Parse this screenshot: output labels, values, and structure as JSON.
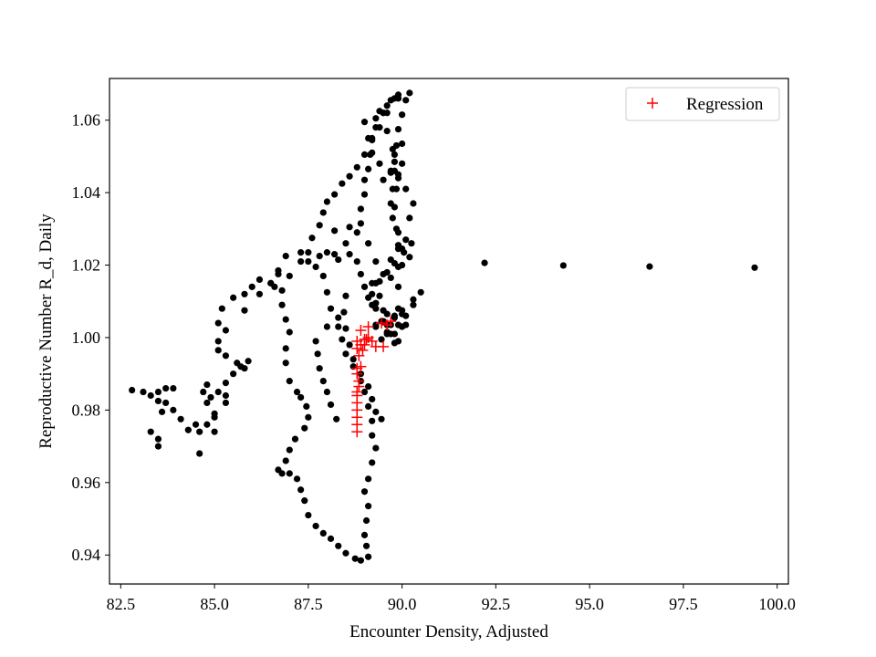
{
  "chart_data": {
    "type": "scatter",
    "title": "",
    "xlabel": "Encounter Density, Adjusted",
    "ylabel": "Reproductive Number R_d, Daily",
    "xlim": [
      82.2,
      100.3
    ],
    "ylim": [
      0.932,
      1.0715
    ],
    "xticks": [
      82.5,
      85.0,
      87.5,
      90.0,
      92.5,
      95.0,
      97.5,
      100.0
    ],
    "xtick_labels": [
      "82.5",
      "85.0",
      "87.5",
      "90.0",
      "92.5",
      "95.0",
      "97.5",
      "100.0"
    ],
    "yticks": [
      0.94,
      0.96,
      0.98,
      1.0,
      1.02,
      1.04,
      1.06
    ],
    "ytick_labels": [
      "0.94",
      "0.96",
      "0.98",
      "1.00",
      "1.02",
      "1.04",
      "1.06"
    ],
    "grid": false,
    "legend_position": "top-right",
    "observations": {
      "color": "#000000",
      "marker": "dot",
      "path": [
        [
          99.4,
          1.0193
        ],
        [
          96.6,
          1.0196
        ],
        [
          94.3,
          1.0199
        ],
        [
          92.2,
          1.0206
        ],
        [
          90.2,
          1.0222
        ],
        [
          90.05,
          1.0235
        ],
        [
          89.9,
          1.0255
        ],
        [
          89.85,
          1.03
        ],
        [
          89.8,
          1.036
        ],
        [
          89.75,
          1.041
        ],
        [
          89.8,
          1.046
        ],
        [
          89.75,
          1.052
        ],
        [
          89.6,
          1.057
        ],
        [
          89.6,
          1.062
        ],
        [
          89.8,
          1.066
        ],
        [
          90.2,
          1.0675
        ],
        [
          89.9,
          1.066
        ],
        [
          89.5,
          1.062
        ],
        [
          89.3,
          1.058
        ],
        [
          89.2,
          1.055
        ],
        [
          89.2,
          1.051
        ],
        [
          89.4,
          1.048
        ],
        [
          89.7,
          1.046
        ],
        [
          89.9,
          1.044
        ],
        [
          90.1,
          1.041
        ],
        [
          90.3,
          1.037
        ],
        [
          90.2,
          1.033
        ],
        [
          90.25,
          1.026
        ],
        [
          90.0,
          1.02
        ],
        [
          89.9,
          1.014
        ],
        [
          89.9,
          1.008
        ],
        [
          90.1,
          1.0035
        ],
        [
          89.9,
          0.999
        ],
        [
          89.6,
          1.001
        ],
        [
          89.3,
          1.003
        ],
        [
          89.2,
          1.009
        ],
        [
          89.2,
          1.015
        ],
        [
          89.3,
          1.021
        ],
        [
          89.1,
          1.026
        ],
        [
          88.8,
          1.029
        ],
        [
          88.5,
          1.026
        ],
        [
          88.2,
          1.023
        ],
        [
          87.8,
          1.0225
        ],
        [
          87.5,
          1.0235
        ],
        [
          87.3,
          1.021
        ],
        [
          87.0,
          1.017
        ],
        [
          86.8,
          1.013
        ],
        [
          86.5,
          1.015
        ],
        [
          86.2,
          1.016
        ],
        [
          86.0,
          1.014
        ],
        [
          85.8,
          1.012
        ],
        [
          85.5,
          1.011
        ],
        [
          85.2,
          1.008
        ],
        [
          85.1,
          1.004
        ],
        [
          85.1,
          0.999
        ],
        [
          85.3,
          0.995
        ],
        [
          85.6,
          0.993
        ],
        [
          85.8,
          0.9915
        ],
        [
          85.9,
          0.9935
        ],
        [
          85.7,
          0.992
        ],
        [
          85.5,
          0.99
        ],
        [
          85.3,
          0.9875
        ],
        [
          85.1,
          0.985
        ],
        [
          84.9,
          0.9835
        ],
        [
          84.8,
          0.987
        ],
        [
          84.7,
          0.985
        ],
        [
          84.8,
          0.982
        ],
        [
          85.0,
          0.979
        ],
        [
          84.8,
          0.976
        ],
        [
          84.6,
          0.974
        ],
        [
          84.5,
          0.976
        ],
        [
          84.3,
          0.9745
        ],
        [
          84.1,
          0.9775
        ],
        [
          83.9,
          0.98
        ],
        [
          83.7,
          0.982
        ],
        [
          83.5,
          0.985
        ],
        [
          83.5,
          0.9825
        ],
        [
          83.7,
          0.986
        ],
        [
          83.9,
          0.986
        ],
        [
          83.6,
          0.9795
        ],
        [
          83.3,
          0.984
        ],
        [
          83.1,
          0.985
        ],
        [
          82.8,
          0.9855
        ],
        [
          83.5,
          0.97
        ],
        [
          83.5,
          0.972
        ],
        [
          83.3,
          0.974
        ],
        [
          84.6,
          0.968
        ],
        [
          85.0,
          0.974
        ],
        [
          85.0,
          0.978
        ],
        [
          85.3,
          0.982
        ],
        [
          85.3,
          0.984
        ],
        [
          85.1,
          0.9965
        ],
        [
          85.3,
          1.002
        ],
        [
          85.8,
          1.0075
        ],
        [
          86.2,
          1.012
        ],
        [
          86.5,
          1.015
        ],
        [
          86.7,
          1.0185
        ],
        [
          86.9,
          1.0225
        ],
        [
          86.7,
          1.0175
        ],
        [
          86.6,
          1.014
        ],
        [
          86.8,
          1.009
        ],
        [
          86.9,
          1.005
        ],
        [
          87.0,
          1.0015
        ],
        [
          86.9,
          0.997
        ],
        [
          86.9,
          0.993
        ],
        [
          87.0,
          0.988
        ],
        [
          87.2,
          0.985
        ],
        [
          87.3,
          0.9835
        ],
        [
          87.45,
          0.981
        ],
        [
          87.5,
          0.978
        ],
        [
          87.4,
          0.975
        ],
        [
          87.15,
          0.972
        ],
        [
          87.0,
          0.969
        ],
        [
          86.9,
          0.966
        ],
        [
          86.7,
          0.9635
        ],
        [
          86.8,
          0.9625
        ],
        [
          87.0,
          0.9625
        ],
        [
          87.2,
          0.961
        ],
        [
          87.3,
          0.958
        ],
        [
          87.4,
          0.955
        ],
        [
          87.5,
          0.951
        ],
        [
          87.7,
          0.948
        ],
        [
          87.9,
          0.946
        ],
        [
          88.1,
          0.9445
        ],
        [
          88.3,
          0.9425
        ],
        [
          88.5,
          0.9405
        ],
        [
          88.75,
          0.939
        ],
        [
          88.9,
          0.9385
        ],
        [
          89.1,
          0.9395
        ],
        [
          89.05,
          0.9425
        ],
        [
          89.0,
          0.9455
        ],
        [
          89.05,
          0.9495
        ],
        [
          89.1,
          0.9535
        ],
        [
          89.0,
          0.9575
        ],
        [
          89.1,
          0.961
        ],
        [
          89.2,
          0.9655
        ],
        [
          89.3,
          0.9695
        ],
        [
          89.2,
          0.973
        ],
        [
          89.2,
          0.977
        ],
        [
          89.1,
          0.981
        ],
        [
          89.0,
          0.985
        ],
        [
          88.9,
          0.988
        ],
        [
          88.7,
          0.992
        ],
        [
          88.5,
          0.9955
        ],
        [
          88.4,
          0.9995
        ],
        [
          88.3,
          1.003
        ],
        [
          88.1,
          1.008
        ],
        [
          88.0,
          1.0125
        ],
        [
          87.9,
          1.017
        ],
        [
          87.7,
          1.0195
        ],
        [
          87.5,
          1.021
        ],
        [
          87.3,
          1.0235
        ],
        [
          87.6,
          1.0275
        ],
        [
          87.8,
          1.031
        ],
        [
          87.9,
          1.0345
        ],
        [
          88.0,
          1.0375
        ],
        [
          88.2,
          1.0395
        ],
        [
          88.4,
          1.0425
        ],
        [
          88.6,
          1.0445
        ],
        [
          88.8,
          1.047
        ],
        [
          89.0,
          1.0505
        ],
        [
          89.2,
          1.0545
        ],
        [
          89.4,
          1.058
        ],
        [
          89.5,
          1.062
        ],
        [
          89.7,
          1.0655
        ],
        [
          89.9,
          1.067
        ],
        [
          90.1,
          1.0655
        ],
        [
          90.0,
          1.0615
        ],
        [
          89.9,
          1.0575
        ],
        [
          89.85,
          1.053
        ],
        [
          89.8,
          1.0485
        ],
        [
          89.9,
          1.045
        ],
        [
          89.85,
          1.041
        ],
        [
          89.7,
          1.037
        ],
        [
          89.75,
          1.033
        ],
        [
          89.9,
          1.029
        ],
        [
          90.0,
          1.0245
        ],
        [
          89.8,
          1.0205
        ],
        [
          89.6,
          1.018
        ],
        [
          89.4,
          1.0155
        ],
        [
          89.2,
          1.012
        ],
        [
          89.3,
          1.008
        ],
        [
          89.45,
          1.0045
        ],
        [
          89.6,
          1.0035
        ],
        [
          89.8,
          1.0055
        ],
        [
          90.0,
          1.0075
        ],
        [
          90.3,
          1.0105
        ],
        [
          90.5,
          1.0125
        ],
        [
          90.3,
          1.009
        ],
        [
          90.1,
          1.006
        ],
        [
          90.0,
          1.003
        ],
        [
          89.8,
          1.001
        ],
        [
          89.7,
          1.0035
        ],
        [
          89.6,
          1.0065
        ],
        [
          89.8,
          1.006
        ],
        [
          90.0,
          1.0065
        ],
        [
          89.5,
          1.0075
        ],
        [
          89.3,
          1.0095
        ],
        [
          89.1,
          1.011
        ],
        [
          89.0,
          1.014
        ],
        [
          88.9,
          1.0175
        ],
        [
          88.8,
          1.021
        ],
        [
          88.6,
          1.023
        ],
        [
          88.3,
          1.0215
        ],
        [
          88.0,
          1.0235
        ],
        [
          88.2,
          1.0295
        ],
        [
          88.6,
          1.0305
        ],
        [
          88.9,
          1.0315
        ],
        [
          88.9,
          1.0355
        ],
        [
          89.0,
          1.0395
        ],
        [
          89.0,
          1.0435
        ],
        [
          89.1,
          1.0465
        ],
        [
          89.15,
          1.0505
        ],
        [
          89.1,
          1.055
        ],
        [
          89.0,
          1.0595
        ],
        [
          89.3,
          1.0605
        ],
        [
          89.4,
          1.0625
        ],
        [
          89.6,
          1.064
        ],
        [
          88.5,
          1.0115
        ],
        [
          88.45,
          1.007
        ],
        [
          88.5,
          1.0025
        ],
        [
          88.6,
          0.998
        ],
        [
          88.7,
          0.994
        ],
        [
          88.9,
          0.99
        ],
        [
          89.1,
          0.9865
        ],
        [
          89.2,
          0.983
        ],
        [
          89.3,
          0.9795
        ],
        [
          89.45,
          0.9775
        ],
        [
          88.25,
          0.9775
        ],
        [
          88.1,
          0.9815
        ],
        [
          88.0,
          0.985
        ],
        [
          87.9,
          0.988
        ],
        [
          87.8,
          0.9915
        ],
        [
          87.75,
          0.9955
        ],
        [
          87.7,
          0.999
        ],
        [
          88.0,
          1.003
        ],
        [
          88.3,
          1.0055
        ],
        [
          89.45,
          0.9995
        ],
        [
          89.6,
          1.0015
        ],
        [
          89.8,
          0.9985
        ],
        [
          89.9,
          1.0035
        ],
        [
          89.7,
          1.001
        ],
        [
          89.3,
          1.0035
        ],
        [
          89.5,
          1.0045
        ],
        [
          89.4,
          1.0115
        ],
        [
          89.7,
          1.0165
        ],
        [
          89.9,
          1.0195
        ],
        [
          89.3,
          1.015
        ],
        [
          89.5,
          1.0175
        ],
        [
          89.7,
          1.0215
        ],
        [
          89.9,
          1.0245
        ],
        [
          90.1,
          1.027
        ],
        [
          90.0,
          1.048
        ],
        [
          89.7,
          1.0455
        ],
        [
          89.5,
          1.0435
        ],
        [
          89.8,
          1.0505
        ],
        [
          90.0,
          1.0535
        ]
      ]
    },
    "series": [
      {
        "name": "Regression",
        "color": "#ff0000",
        "marker": "plus",
        "points": [
          [
            88.8,
            0.974
          ],
          [
            88.8,
            0.976
          ],
          [
            88.8,
            0.978
          ],
          [
            88.8,
            0.98
          ],
          [
            88.8,
            0.982
          ],
          [
            88.8,
            0.984
          ],
          [
            88.8,
            0.985
          ],
          [
            88.85,
            0.9865
          ],
          [
            88.85,
            0.988
          ],
          [
            88.8,
            0.99
          ],
          [
            88.9,
            0.992
          ],
          [
            88.8,
            0.9915
          ],
          [
            88.85,
            0.995
          ],
          [
            88.8,
            0.997
          ],
          [
            88.9,
            0.998
          ],
          [
            88.8,
            0.999
          ],
          [
            89.0,
            0.9995
          ],
          [
            89.1,
            1.0
          ],
          [
            89.2,
            0.999
          ],
          [
            89.0,
            0.998
          ],
          [
            89.3,
            0.9975
          ],
          [
            89.5,
            0.9975
          ],
          [
            88.9,
            1.002
          ],
          [
            89.1,
            1.003
          ],
          [
            89.45,
            1.004
          ],
          [
            89.7,
            1.0045
          ],
          [
            89.6,
            1.0035
          ],
          [
            89.05,
            0.9995
          ],
          [
            88.95,
            0.9965
          ]
        ]
      }
    ]
  }
}
